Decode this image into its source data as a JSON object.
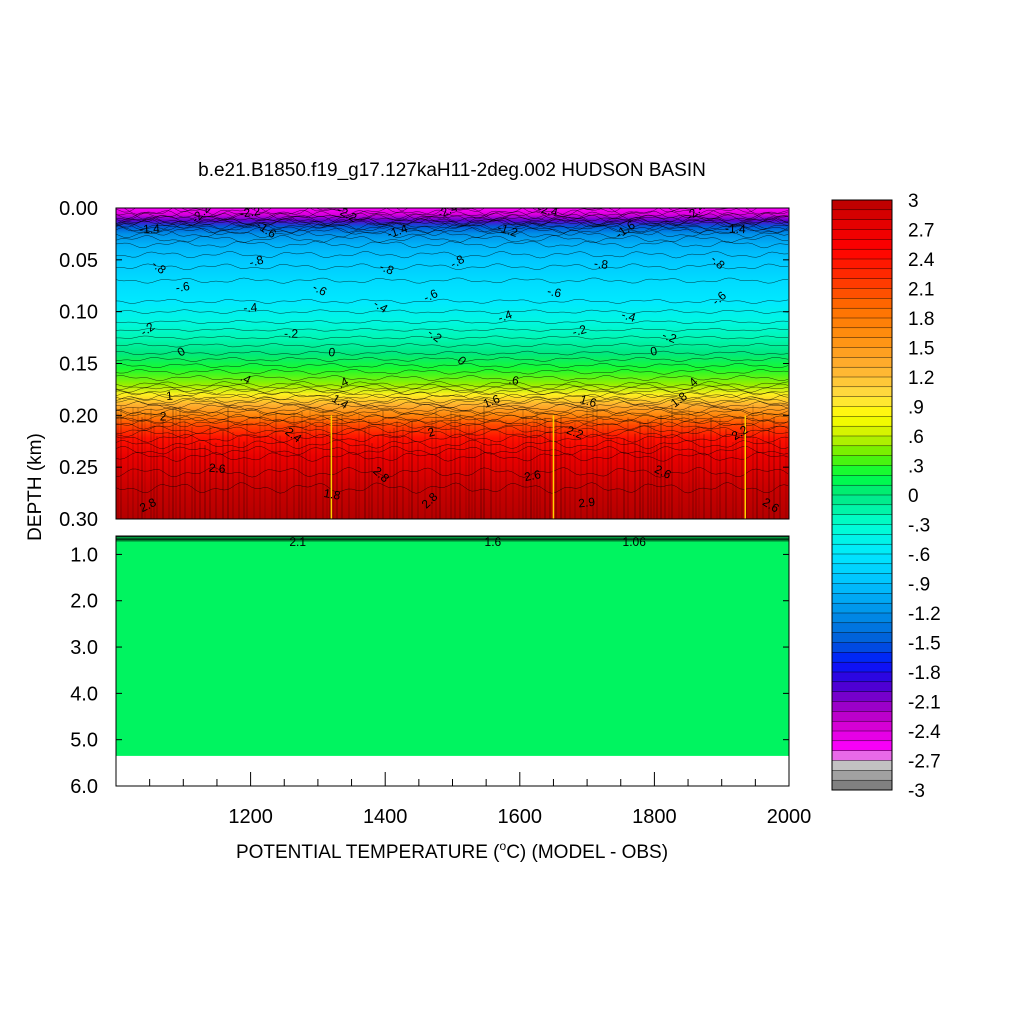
{
  "chart_data": {
    "type": "heatmap",
    "title": "b.e21.B1850.f19_g17.127kaH11-2deg.002 HUDSON BASIN",
    "xlabel": "POTENTIAL TEMPERATURE (",
    "xlabel_unit_sup": "o",
    "xlabel_unit_rest": "C) (MODEL - OBS)",
    "ylabel": "DEPTH (km)",
    "xlim": [
      1000,
      2000
    ],
    "x_ticks": [
      {
        "value": 1200,
        "label": "1200"
      },
      {
        "value": 1400,
        "label": "1400"
      },
      {
        "value": 1600,
        "label": "1600"
      },
      {
        "value": 1800,
        "label": "1800"
      },
      {
        "value": 2000,
        "label": "2000"
      }
    ],
    "upper_panel": {
      "ylim": [
        0.0,
        0.3
      ],
      "y_ticks": [
        {
          "value": 0.0,
          "label": "0.00"
        },
        {
          "value": 0.05,
          "label": "0.05"
        },
        {
          "value": 0.1,
          "label": "0.10"
        },
        {
          "value": 0.15,
          "label": "0.15"
        },
        {
          "value": 0.2,
          "label": "0.20"
        },
        {
          "value": 0.25,
          "label": "0.25"
        },
        {
          "value": 0.3,
          "label": "0.30"
        }
      ],
      "depth_profile": [
        {
          "depth": 0.0,
          "value": -2.6
        },
        {
          "depth": 0.006,
          "value": -2.4
        },
        {
          "depth": 0.012,
          "value": -2.0
        },
        {
          "depth": 0.018,
          "value": -1.5
        },
        {
          "depth": 0.025,
          "value": -1.2
        },
        {
          "depth": 0.035,
          "value": -1.0
        },
        {
          "depth": 0.05,
          "value": -0.85
        },
        {
          "depth": 0.07,
          "value": -0.7
        },
        {
          "depth": 0.09,
          "value": -0.6
        },
        {
          "depth": 0.11,
          "value": -0.4
        },
        {
          "depth": 0.125,
          "value": -0.2
        },
        {
          "depth": 0.14,
          "value": 0.0
        },
        {
          "depth": 0.155,
          "value": 0.25
        },
        {
          "depth": 0.17,
          "value": 0.5
        },
        {
          "depth": 0.18,
          "value": 0.9
        },
        {
          "depth": 0.19,
          "value": 1.3
        },
        {
          "depth": 0.2,
          "value": 1.7
        },
        {
          "depth": 0.21,
          "value": 2.1
        },
        {
          "depth": 0.222,
          "value": 2.4
        },
        {
          "depth": 0.24,
          "value": 2.7
        },
        {
          "depth": 0.27,
          "value": 2.9
        },
        {
          "depth": 0.3,
          "value": 3.0
        }
      ],
      "contour_labels": [
        {
          "x": 1130,
          "depth": 0.008,
          "text": "-2.2"
        },
        {
          "x": 1200,
          "depth": 0.008,
          "text": "-2.2"
        },
        {
          "x": 1340,
          "depth": 0.009,
          "text": "-2.2"
        },
        {
          "x": 1495,
          "depth": 0.006,
          "text": "-2.4"
        },
        {
          "x": 1640,
          "depth": 0.006,
          "text": "-2.4"
        },
        {
          "x": 1865,
          "depth": 0.006,
          "text": "-2.4"
        },
        {
          "x": 1050,
          "depth": 0.024,
          "text": "-1.4"
        },
        {
          "x": 1220,
          "depth": 0.024,
          "text": "-1.6"
        },
        {
          "x": 1420,
          "depth": 0.026,
          "text": "-1.4"
        },
        {
          "x": 1580,
          "depth": 0.025,
          "text": "-1.2"
        },
        {
          "x": 1760,
          "depth": 0.024,
          "text": "-1.6"
        },
        {
          "x": 1920,
          "depth": 0.024,
          "text": "-1.4"
        },
        {
          "x": 1060,
          "depth": 0.06,
          "text": "-.8"
        },
        {
          "x": 1210,
          "depth": 0.055,
          "text": "-.8"
        },
        {
          "x": 1400,
          "depth": 0.062,
          "text": "-.8"
        },
        {
          "x": 1510,
          "depth": 0.055,
          "text": "-.8"
        },
        {
          "x": 1720,
          "depth": 0.058,
          "text": "-.8"
        },
        {
          "x": 1890,
          "depth": 0.055,
          "text": "-.8"
        },
        {
          "x": 1100,
          "depth": 0.08,
          "text": "-.6"
        },
        {
          "x": 1300,
          "depth": 0.082,
          "text": "-.6"
        },
        {
          "x": 1470,
          "depth": 0.088,
          "text": "-.6"
        },
        {
          "x": 1650,
          "depth": 0.085,
          "text": "-.6"
        },
        {
          "x": 1900,
          "depth": 0.09,
          "text": "-.6"
        },
        {
          "x": 1200,
          "depth": 0.1,
          "text": "-.4"
        },
        {
          "x": 1390,
          "depth": 0.098,
          "text": "-.4"
        },
        {
          "x": 1580,
          "depth": 0.108,
          "text": "-.4"
        },
        {
          "x": 1760,
          "depth": 0.108,
          "text": "-.4"
        },
        {
          "x": 1050,
          "depth": 0.12,
          "text": "-.2"
        },
        {
          "x": 1260,
          "depth": 0.125,
          "text": "-.2"
        },
        {
          "x": 1470,
          "depth": 0.126,
          "text": "-.2"
        },
        {
          "x": 1690,
          "depth": 0.122,
          "text": "-.2"
        },
        {
          "x": 1820,
          "depth": 0.128,
          "text": "-.2"
        },
        {
          "x": 1100,
          "depth": 0.142,
          "text": "0"
        },
        {
          "x": 1320,
          "depth": 0.143,
          "text": "0"
        },
        {
          "x": 1510,
          "depth": 0.15,
          "text": "0"
        },
        {
          "x": 1800,
          "depth": 0.142,
          "text": "0"
        },
        {
          "x": 1190,
          "depth": 0.168,
          "text": ".4"
        },
        {
          "x": 1340,
          "depth": 0.172,
          "text": ".4"
        },
        {
          "x": 1590,
          "depth": 0.17,
          "text": ".6"
        },
        {
          "x": 1860,
          "depth": 0.172,
          "text": ".4"
        },
        {
          "x": 1080,
          "depth": 0.185,
          "text": "1"
        },
        {
          "x": 1330,
          "depth": 0.19,
          "text": "1.4"
        },
        {
          "x": 1560,
          "depth": 0.19,
          "text": "1.6"
        },
        {
          "x": 1700,
          "depth": 0.19,
          "text": "1.6"
        },
        {
          "x": 1840,
          "depth": 0.188,
          "text": "1.8"
        },
        {
          "x": 1070,
          "depth": 0.205,
          "text": "2"
        },
        {
          "x": 1260,
          "depth": 0.222,
          "text": "2.4"
        },
        {
          "x": 1470,
          "depth": 0.22,
          "text": "2"
        },
        {
          "x": 1680,
          "depth": 0.22,
          "text": "2.2"
        },
        {
          "x": 1930,
          "depth": 0.22,
          "text": "2.2"
        },
        {
          "x": 1150,
          "depth": 0.255,
          "text": "2.6"
        },
        {
          "x": 1390,
          "depth": 0.26,
          "text": "2.8"
        },
        {
          "x": 1620,
          "depth": 0.262,
          "text": "2.6"
        },
        {
          "x": 1810,
          "depth": 0.258,
          "text": "2.6"
        },
        {
          "x": 1050,
          "depth": 0.29,
          "text": "2.8"
        },
        {
          "x": 1320,
          "depth": 0.28,
          "text": "1.8"
        },
        {
          "x": 1470,
          "depth": 0.285,
          "text": "2.8"
        },
        {
          "x": 1700,
          "depth": 0.288,
          "text": "2.9"
        },
        {
          "x": 1970,
          "depth": 0.29,
          "text": "2.6"
        }
      ]
    },
    "lower_panel": {
      "ylim": [
        0.3,
        6.0
      ],
      "y_ticks": [
        {
          "value": 1.0,
          "label": "1.0"
        },
        {
          "value": 2.0,
          "label": "2.0"
        },
        {
          "value": 3.0,
          "label": "3.0"
        },
        {
          "value": 4.0,
          "label": "4.0"
        },
        {
          "value": 5.0,
          "label": "5.0"
        },
        {
          "value": 6.0,
          "label": "6.0"
        }
      ],
      "filled_value": 0.1,
      "data_bottom_depth": 5.35,
      "contour_labels": [
        {
          "x": 1270,
          "depth": 0.33,
          "text": "2.1"
        },
        {
          "x": 1560,
          "depth": 0.33,
          "text": "1.6"
        },
        {
          "x": 1770,
          "depth": 0.33,
          "text": "1.06"
        }
      ]
    },
    "colorbar": {
      "min": -3.0,
      "max": 3.0,
      "step": 0.1,
      "tick_labels": [
        "3",
        "2.7",
        "2.4",
        "2.1",
        "1.8",
        "1.5",
        "1.2",
        ".9",
        ".6",
        ".3",
        "0",
        "-.3",
        "-.6",
        "-.9",
        "-1.2",
        "-1.5",
        "-1.8",
        "-2.1",
        "-2.4",
        "-2.7",
        "-3"
      ],
      "colormap": [
        {
          "v": -3.0,
          "color": "#707070"
        },
        {
          "v": -2.7,
          "color": "#d2d2d2"
        },
        {
          "v": -2.6,
          "color": "#ff00ff"
        },
        {
          "v": -2.3,
          "color": "#cc00cc"
        },
        {
          "v": -2.1,
          "color": "#8a00c8"
        },
        {
          "v": -1.9,
          "color": "#3a00d8"
        },
        {
          "v": -1.7,
          "color": "#0018ff"
        },
        {
          "v": -1.5,
          "color": "#005ad8"
        },
        {
          "v": -1.2,
          "color": "#0090e8"
        },
        {
          "v": -0.9,
          "color": "#00c0ff"
        },
        {
          "v": -0.6,
          "color": "#00e8ff"
        },
        {
          "v": -0.3,
          "color": "#00ffd0"
        },
        {
          "v": 0.0,
          "color": "#00e880"
        },
        {
          "v": 0.2,
          "color": "#00ff40"
        },
        {
          "v": 0.4,
          "color": "#60f000"
        },
        {
          "v": 0.6,
          "color": "#c8f000"
        },
        {
          "v": 0.8,
          "color": "#ffff00"
        },
        {
          "v": 1.0,
          "color": "#ffe040"
        },
        {
          "v": 1.3,
          "color": "#ffb030"
        },
        {
          "v": 1.6,
          "color": "#ff9010"
        },
        {
          "v": 1.9,
          "color": "#ff7000"
        },
        {
          "v": 2.2,
          "color": "#ff3000"
        },
        {
          "v": 2.5,
          "color": "#ff0000"
        },
        {
          "v": 2.8,
          "color": "#e00000"
        },
        {
          "v": 3.0,
          "color": "#b40000"
        }
      ]
    }
  }
}
